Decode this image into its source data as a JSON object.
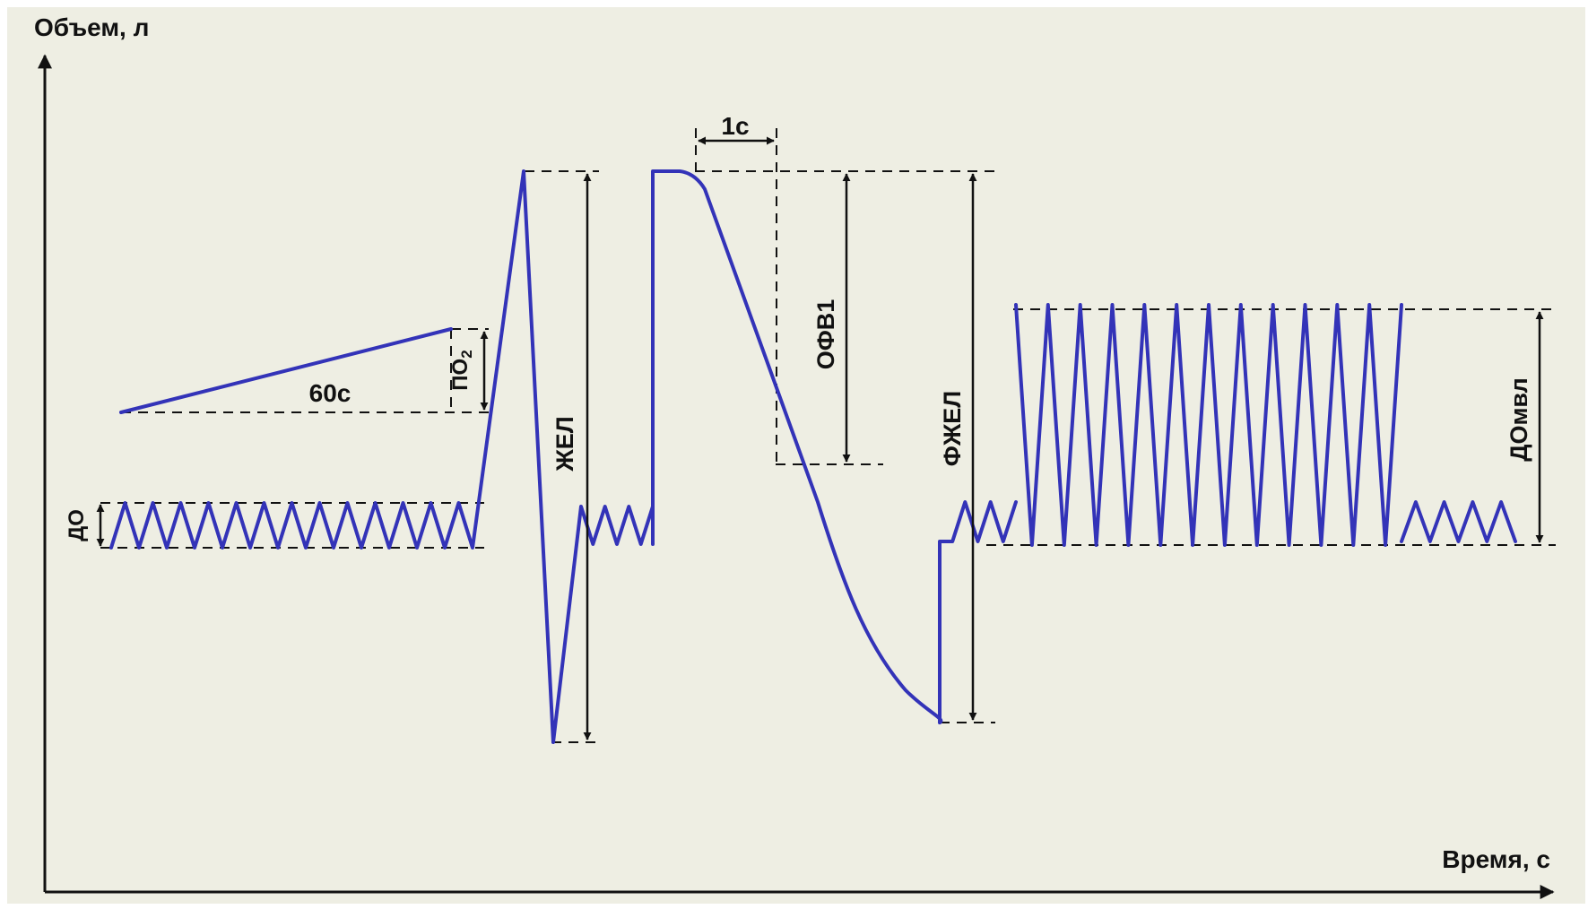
{
  "axes": {
    "y_label": "Объем, л",
    "x_label": "Время, с"
  },
  "labels": {
    "tidal_volume": "ДО",
    "oxygen_uptake_base": "ПО",
    "oxygen_uptake_sub": "2",
    "sixty_seconds": "60с",
    "vital_capacity": "ЖЕЛ",
    "one_second": "1с",
    "fev1": "ОФВ1",
    "forced_vital_capacity": "ФЖЕЛ",
    "max_ventilation_tidal": "ДОмвл"
  },
  "colors": {
    "background": "#eeeee3",
    "curve": "#3333b8",
    "ink": "#111111"
  }
}
